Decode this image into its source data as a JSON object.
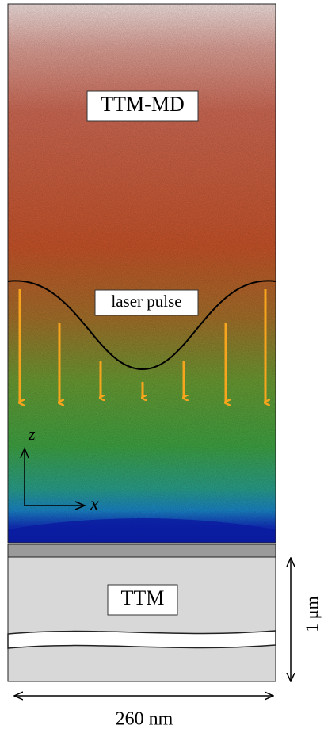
{
  "md_region": {
    "label": "TTM-MD",
    "pulse_label": "laser pulse",
    "axis_z": "z",
    "axis_x": "x"
  },
  "ttm_region": {
    "label": "TTM"
  },
  "dimensions": {
    "height": "1 μm",
    "width": "260 nm"
  }
}
